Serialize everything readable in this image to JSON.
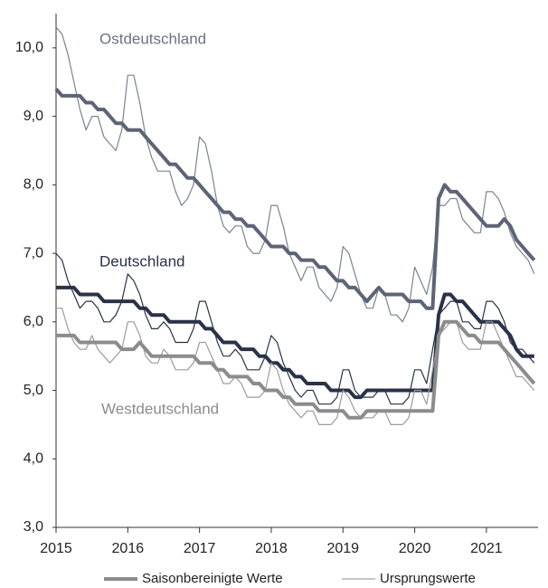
{
  "chart_data": {
    "type": "line",
    "annotations": [
      "Ostdeutschland",
      "Deutschland",
      "Westdeutschland"
    ],
    "legend": [
      "Saisonbereinigte Werte",
      "Ursprungswerte"
    ],
    "x": [
      2015,
      2015.083,
      2015.167,
      2015.25,
      2015.333,
      2015.417,
      2015.5,
      2015.583,
      2015.667,
      2015.75,
      2015.833,
      2015.917,
      2016,
      2016.083,
      2016.167,
      2016.25,
      2016.333,
      2016.417,
      2016.5,
      2016.583,
      2016.667,
      2016.75,
      2016.833,
      2016.917,
      2017,
      2017.083,
      2017.167,
      2017.25,
      2017.333,
      2017.417,
      2017.5,
      2017.583,
      2017.667,
      2017.75,
      2017.833,
      2017.917,
      2018,
      2018.083,
      2018.167,
      2018.25,
      2018.333,
      2018.417,
      2018.5,
      2018.583,
      2018.667,
      2018.75,
      2018.833,
      2018.917,
      2019,
      2019.083,
      2019.167,
      2019.25,
      2019.333,
      2019.417,
      2019.5,
      2019.583,
      2019.667,
      2019.75,
      2019.833,
      2019.917,
      2020,
      2020.083,
      2020.167,
      2020.25,
      2020.333,
      2020.417,
      2020.5,
      2020.583,
      2020.667,
      2020.75,
      2020.833,
      2020.917,
      2021,
      2021.083,
      2021.167,
      2021.25,
      2021.333,
      2021.417,
      2021.5,
      2021.583,
      2021.667
    ],
    "regions": [
      {
        "color": "#5d6476",
        "raw_color": "#7c8292",
        "adjusted": [
          9.4,
          9.3,
          9.3,
          9.3,
          9.3,
          9.2,
          9.2,
          9.1,
          9.1,
          9.0,
          8.9,
          8.9,
          8.8,
          8.8,
          8.8,
          8.7,
          8.6,
          8.5,
          8.4,
          8.3,
          8.3,
          8.2,
          8.1,
          8.1,
          8.0,
          7.9,
          7.8,
          7.7,
          7.6,
          7.6,
          7.5,
          7.5,
          7.4,
          7.4,
          7.3,
          7.2,
          7.1,
          7.1,
          7.1,
          7.0,
          7.0,
          6.9,
          6.9,
          6.9,
          6.8,
          6.8,
          6.7,
          6.6,
          6.6,
          6.5,
          6.5,
          6.4,
          6.3,
          6.4,
          6.5,
          6.4,
          6.4,
          6.4,
          6.4,
          6.3,
          6.3,
          6.3,
          6.2,
          6.2,
          7.8,
          8.0,
          7.9,
          7.9,
          7.8,
          7.7,
          7.6,
          7.5,
          7.4,
          7.4,
          7.4,
          7.5,
          7.4,
          7.2,
          7.1,
          7.0,
          6.9
        ],
        "original": [
          10.3,
          10.2,
          9.9,
          9.5,
          9.1,
          8.8,
          9.0,
          9.0,
          8.7,
          8.6,
          8.5,
          8.8,
          9.6,
          9.6,
          9.2,
          8.7,
          8.4,
          8.2,
          8.2,
          8.2,
          7.9,
          7.7,
          7.8,
          8.0,
          8.7,
          8.6,
          8.2,
          7.7,
          7.4,
          7.3,
          7.4,
          7.4,
          7.1,
          7.0,
          7.0,
          7.2,
          7.7,
          7.7,
          7.4,
          7.0,
          6.8,
          6.6,
          6.8,
          6.8,
          6.5,
          6.4,
          6.3,
          6.5,
          7.1,
          7.0,
          6.7,
          6.4,
          6.2,
          6.2,
          6.5,
          6.4,
          6.1,
          6.1,
          6.0,
          6.2,
          6.8,
          6.6,
          6.4,
          6.8,
          7.7,
          7.7,
          7.8,
          7.8,
          7.5,
          7.4,
          7.3,
          7.3,
          7.9,
          7.9,
          7.8,
          7.6,
          7.3,
          7.1,
          7.0,
          6.9,
          6.7
        ]
      },
      {
        "color": "#2a3248",
        "raw_color": "#2a3248",
        "adjusted": [
          6.5,
          6.5,
          6.5,
          6.5,
          6.4,
          6.4,
          6.4,
          6.4,
          6.3,
          6.3,
          6.3,
          6.3,
          6.3,
          6.3,
          6.2,
          6.2,
          6.1,
          6.1,
          6.1,
          6.0,
          6.0,
          6.0,
          6.0,
          6.0,
          6.0,
          5.9,
          5.9,
          5.8,
          5.7,
          5.7,
          5.7,
          5.6,
          5.6,
          5.6,
          5.5,
          5.5,
          5.4,
          5.4,
          5.3,
          5.3,
          5.2,
          5.2,
          5.1,
          5.1,
          5.1,
          5.1,
          5.0,
          5.0,
          5.0,
          5.0,
          4.9,
          4.9,
          5.0,
          5.0,
          5.0,
          5.0,
          5.0,
          5.0,
          5.0,
          5.0,
          5.0,
          5.0,
          5.0,
          5.0,
          6.1,
          6.4,
          6.4,
          6.3,
          6.3,
          6.2,
          6.1,
          6.0,
          6.0,
          6.0,
          6.0,
          5.9,
          5.8,
          5.6,
          5.5,
          5.5,
          5.5
        ],
        "original": [
          7.0,
          6.9,
          6.6,
          6.4,
          6.2,
          6.3,
          6.3,
          6.2,
          6.0,
          6.0,
          6.1,
          6.3,
          6.7,
          6.6,
          6.4,
          6.1,
          5.9,
          5.9,
          6.0,
          5.9,
          5.7,
          5.7,
          5.7,
          5.9,
          6.3,
          6.3,
          6.0,
          5.7,
          5.5,
          5.5,
          5.6,
          5.5,
          5.3,
          5.3,
          5.3,
          5.5,
          5.8,
          5.7,
          5.4,
          5.2,
          5.0,
          4.9,
          5.0,
          5.0,
          4.8,
          4.8,
          4.8,
          4.9,
          5.3,
          5.3,
          5.0,
          4.9,
          4.9,
          4.9,
          5.0,
          5.0,
          4.8,
          4.8,
          4.8,
          4.9,
          5.3,
          5.3,
          5.1,
          5.6,
          6.1,
          6.2,
          6.3,
          6.3,
          6.0,
          6.0,
          5.9,
          5.9,
          6.3,
          6.3,
          6.2,
          6.0,
          5.7,
          5.6,
          5.6,
          5.5,
          5.4
        ]
      },
      {
        "color": "#8c8c8c",
        "raw_color": "#9c9c9c",
        "adjusted": [
          5.8,
          5.8,
          5.8,
          5.8,
          5.7,
          5.7,
          5.7,
          5.7,
          5.7,
          5.7,
          5.7,
          5.6,
          5.6,
          5.6,
          5.7,
          5.6,
          5.5,
          5.5,
          5.5,
          5.5,
          5.5,
          5.5,
          5.5,
          5.5,
          5.4,
          5.4,
          5.4,
          5.3,
          5.3,
          5.2,
          5.2,
          5.2,
          5.2,
          5.1,
          5.1,
          5.0,
          5.0,
          5.0,
          4.9,
          4.9,
          4.8,
          4.8,
          4.8,
          4.8,
          4.7,
          4.7,
          4.7,
          4.7,
          4.7,
          4.6,
          4.6,
          4.6,
          4.7,
          4.7,
          4.7,
          4.7,
          4.7,
          4.7,
          4.7,
          4.7,
          4.7,
          4.7,
          4.7,
          4.7,
          5.8,
          6.0,
          6.0,
          6.0,
          5.9,
          5.8,
          5.8,
          5.7,
          5.7,
          5.7,
          5.7,
          5.6,
          5.5,
          5.4,
          5.3,
          5.2,
          5.1
        ],
        "original": [
          6.2,
          6.2,
          5.9,
          5.7,
          5.6,
          5.6,
          5.8,
          5.6,
          5.5,
          5.4,
          5.5,
          5.6,
          6.0,
          6.0,
          5.8,
          5.5,
          5.4,
          5.4,
          5.6,
          5.5,
          5.3,
          5.3,
          5.3,
          5.4,
          5.7,
          5.7,
          5.5,
          5.3,
          5.1,
          5.1,
          5.2,
          5.1,
          4.9,
          4.9,
          4.9,
          5.0,
          5.4,
          5.3,
          5.0,
          4.8,
          4.7,
          4.6,
          4.7,
          4.7,
          4.5,
          4.5,
          4.5,
          4.6,
          5.0,
          4.9,
          4.7,
          4.6,
          4.6,
          4.6,
          4.7,
          4.7,
          4.5,
          4.5,
          4.5,
          4.6,
          5.0,
          5.0,
          4.8,
          5.3,
          5.8,
          5.9,
          6.0,
          6.0,
          5.7,
          5.6,
          5.6,
          5.6,
          6.0,
          6.0,
          5.8,
          5.6,
          5.4,
          5.2,
          5.2,
          5.1,
          5.0
        ]
      }
    ],
    "xlim": [
      2015,
      2021.72
    ],
    "xticks": [
      2015,
      2016,
      2017,
      2018,
      2019,
      2020,
      2021
    ],
    "ylim": [
      3,
      10.5
    ],
    "yticks": [
      {
        "value": 3,
        "label": "3,0"
      },
      {
        "value": 4,
        "label": "4,0"
      },
      {
        "value": 5,
        "label": "5,0"
      },
      {
        "value": 6,
        "label": "6,0"
      },
      {
        "value": 7,
        "label": "7,0"
      },
      {
        "value": 8,
        "label": "8,0"
      },
      {
        "value": 9,
        "label": "9,0"
      },
      {
        "value": 10,
        "label": "10,0"
      }
    ],
    "grid": false
  }
}
